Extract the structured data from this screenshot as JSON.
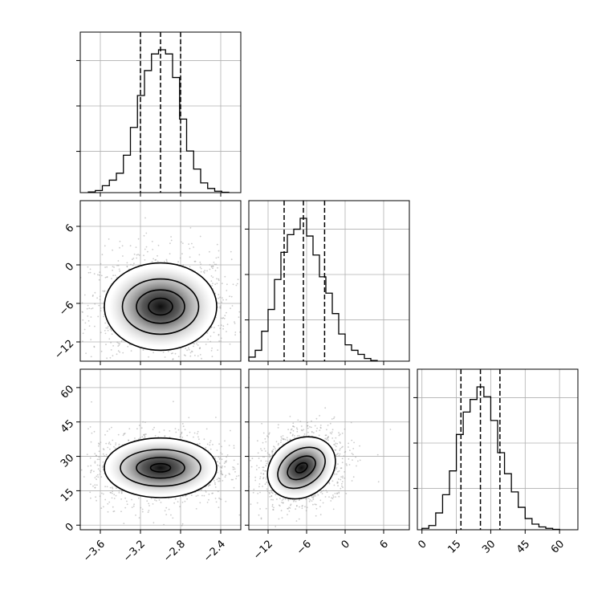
{
  "chart_data": {
    "type": "corner",
    "parameters": [
      {
        "ticks": [
          "−3.6",
          "−3.2",
          "−2.8",
          "−2.4"
        ],
        "tick_values": [
          -3.6,
          -3.2,
          -2.8,
          -2.4
        ],
        "range": [
          -3.8,
          -2.2
        ],
        "quantiles": [
          -3.2,
          -3.0,
          -2.8
        ]
      },
      {
        "ticks": [
          "−12",
          "−6",
          "0",
          "6"
        ],
        "tick_values": [
          -12,
          -6,
          0,
          6
        ],
        "range": [
          -15,
          10
        ],
        "quantiles": [
          -9.5,
          -6.5,
          -3.2
        ]
      },
      {
        "ticks": [
          "0",
          "15",
          "30",
          "45",
          "60"
        ],
        "tick_values": [
          0,
          15,
          30,
          45,
          60
        ],
        "range": [
          -2,
          68
        ],
        "quantiles": [
          17,
          25.5,
          34
        ]
      }
    ],
    "histograms": [
      {
        "bins": [
          -3.72,
          -3.65,
          -3.58,
          -3.51,
          -3.44,
          -3.37,
          -3.3,
          -3.23,
          -3.16,
          -3.09,
          -3.02,
          -2.95,
          -2.88,
          -2.81,
          -2.74,
          -2.67,
          -2.6,
          -2.53,
          -2.46,
          -2.39
        ],
        "counts": [
          0.005,
          0.015,
          0.05,
          0.09,
          0.14,
          0.27,
          0.47,
          0.7,
          0.88,
          1.0,
          1.03,
          1.0,
          0.83,
          0.53,
          0.3,
          0.17,
          0.07,
          0.03,
          0.01,
          0.003
        ]
      },
      {
        "bins": [
          -15,
          -14,
          -13,
          -12,
          -11,
          -10,
          -9,
          -8,
          -7,
          -6,
          -5,
          -4,
          -3,
          -2,
          -1,
          0,
          1,
          2,
          3,
          4
        ],
        "counts": [
          0.03,
          0.08,
          0.22,
          0.38,
          0.6,
          0.8,
          0.93,
          0.97,
          1.05,
          0.92,
          0.78,
          0.62,
          0.5,
          0.35,
          0.2,
          0.12,
          0.08,
          0.05,
          0.02,
          0.005
        ]
      },
      {
        "bins": [
          0,
          3,
          6,
          9,
          12,
          15,
          18,
          21,
          24,
          27,
          30,
          33,
          36,
          39,
          42,
          45,
          48,
          51,
          54,
          57
        ],
        "counts": [
          0.01,
          0.03,
          0.12,
          0.25,
          0.42,
          0.68,
          0.84,
          0.93,
          1.02,
          0.95,
          0.78,
          0.55,
          0.4,
          0.27,
          0.16,
          0.08,
          0.04,
          0.02,
          0.01,
          0.003
        ]
      }
    ],
    "contours": [
      {
        "panel": "p2-vs-p1",
        "center": [
          -3.0,
          -6.5
        ],
        "levels": [
          [
            0.12,
            1.3
          ],
          [
            0.24,
            2.6
          ],
          [
            0.38,
            4.3
          ],
          [
            0.56,
            6.8
          ]
        ]
      },
      {
        "panel": "p3-vs-p1",
        "center": [
          -3.0,
          25
        ],
        "levels": [
          [
            0.1,
            1.8
          ],
          [
            0.24,
            4.5
          ],
          [
            0.4,
            8.0
          ],
          [
            0.56,
            13.0
          ]
        ]
      },
      {
        "panel": "p3-vs-p2",
        "center": [
          -6.8,
          25
        ],
        "levels": [
          [
            1.0,
            1.8
          ],
          [
            2.4,
            4.3
          ],
          [
            4.0,
            7.8
          ],
          [
            5.6,
            12.5
          ]
        ],
        "rotation_deg": -33
      }
    ],
    "grid": true
  }
}
